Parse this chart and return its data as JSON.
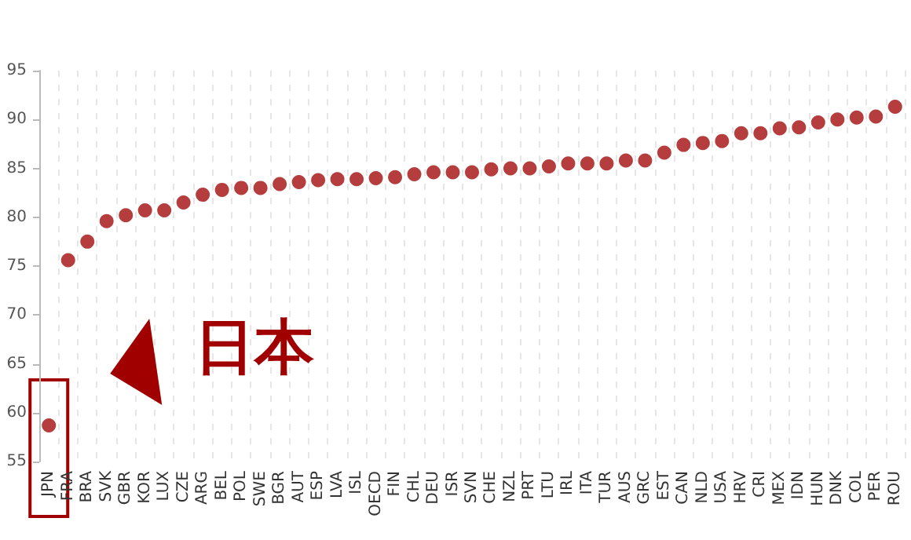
{
  "chart_data": {
    "type": "scatter",
    "categories": [
      "JPN",
      "FRA",
      "BRA",
      "SVK",
      "GBR",
      "KOR",
      "LUX",
      "CZE",
      "ARG",
      "BEL",
      "POL",
      "SWE",
      "BGR",
      "AUT",
      "ESP",
      "LVA",
      "ISL",
      "OECD",
      "FIN",
      "CHL",
      "DEU",
      "ISR",
      "SVN",
      "CHE",
      "NZL",
      "PRT",
      "LTU",
      "IRL",
      "ITA",
      "TUR",
      "AUS",
      "GRC",
      "EST",
      "CAN",
      "NLD",
      "USA",
      "HRV",
      "CRI",
      "MEX",
      "IDN",
      "HUN",
      "DNK",
      "COL",
      "PER",
      "ROU"
    ],
    "values": [
      58.7,
      75.6,
      77.5,
      79.6,
      80.2,
      80.7,
      80.7,
      81.5,
      82.3,
      82.8,
      83.0,
      83.0,
      83.4,
      83.6,
      83.8,
      83.9,
      83.9,
      84.0,
      84.1,
      84.4,
      84.6,
      84.6,
      84.6,
      84.9,
      85.0,
      85.0,
      85.2,
      85.5,
      85.5,
      85.5,
      85.8,
      85.8,
      86.6,
      87.4,
      87.6,
      87.8,
      88.6,
      88.6,
      89.1,
      89.2,
      89.7,
      90.0,
      90.2,
      90.3,
      91.3
    ],
    "color": "#a30d0d",
    "ylim": [
      55,
      95
    ],
    "yticks": [
      55,
      60,
      65,
      70,
      75,
      80,
      85,
      90,
      95
    ],
    "grid": "x",
    "marker": "circle",
    "annotations": [
      {
        "text": "日本",
        "x": "JPN",
        "y": 58.7
      }
    ]
  }
}
